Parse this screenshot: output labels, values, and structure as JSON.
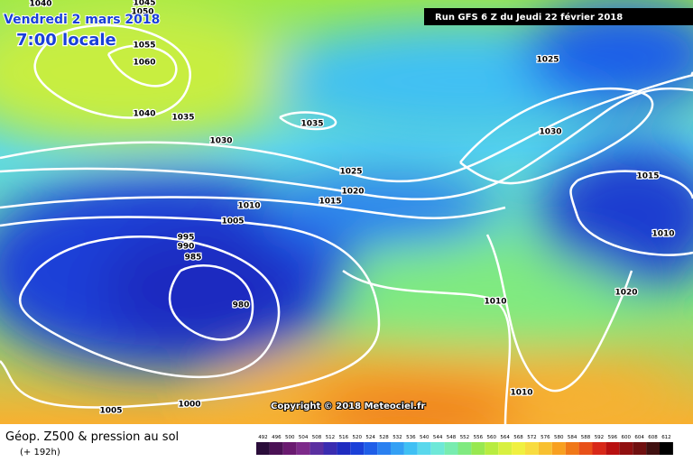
{
  "date": "Vendredi 2 mars 2018",
  "time": "7:00 locale",
  "run": "Run GFS 6 Z du Jeudi 22 février 2018",
  "copyright": "Copyright © 2018 Meteociel.fr",
  "footer": {
    "title": "Géop. Z500 & pression au sol",
    "range": "(+ 192h)"
  },
  "isobar_labels": [
    1040,
    1045,
    1050,
    1055,
    1060,
    1040,
    1035,
    1035,
    1030,
    1025,
    1020,
    1015,
    1010,
    1005,
    995,
    990,
    985,
    980,
    1000,
    1005,
    1010,
    1010,
    1015,
    1010,
    1020,
    1025,
    1030
  ],
  "colorbar": {
    "values": [
      492,
      496,
      500,
      504,
      508,
      512,
      516,
      520,
      524,
      528,
      532,
      536,
      540,
      544,
      548,
      552,
      556,
      560,
      564,
      568,
      572,
      576,
      580,
      584,
      588,
      592,
      596,
      600,
      604,
      608,
      612
    ],
    "colors": [
      "#2a0d3a",
      "#4b1155",
      "#6a1a70",
      "#7d2a8a",
      "#5a2fa0",
      "#3a2cb0",
      "#1f2cc0",
      "#1a40d8",
      "#1f5ee8",
      "#2a80f0",
      "#34a0f4",
      "#40c0f4",
      "#5ad8ec",
      "#6ee8d8",
      "#78ecb0",
      "#80ea80",
      "#98e850",
      "#b8ec40",
      "#d8f040",
      "#f0f040",
      "#f8dc40",
      "#f8c030",
      "#f8a020",
      "#f07818",
      "#e85018",
      "#d82818",
      "#b81010",
      "#901010",
      "#701010",
      "#401010",
      "#000000"
    ]
  }
}
